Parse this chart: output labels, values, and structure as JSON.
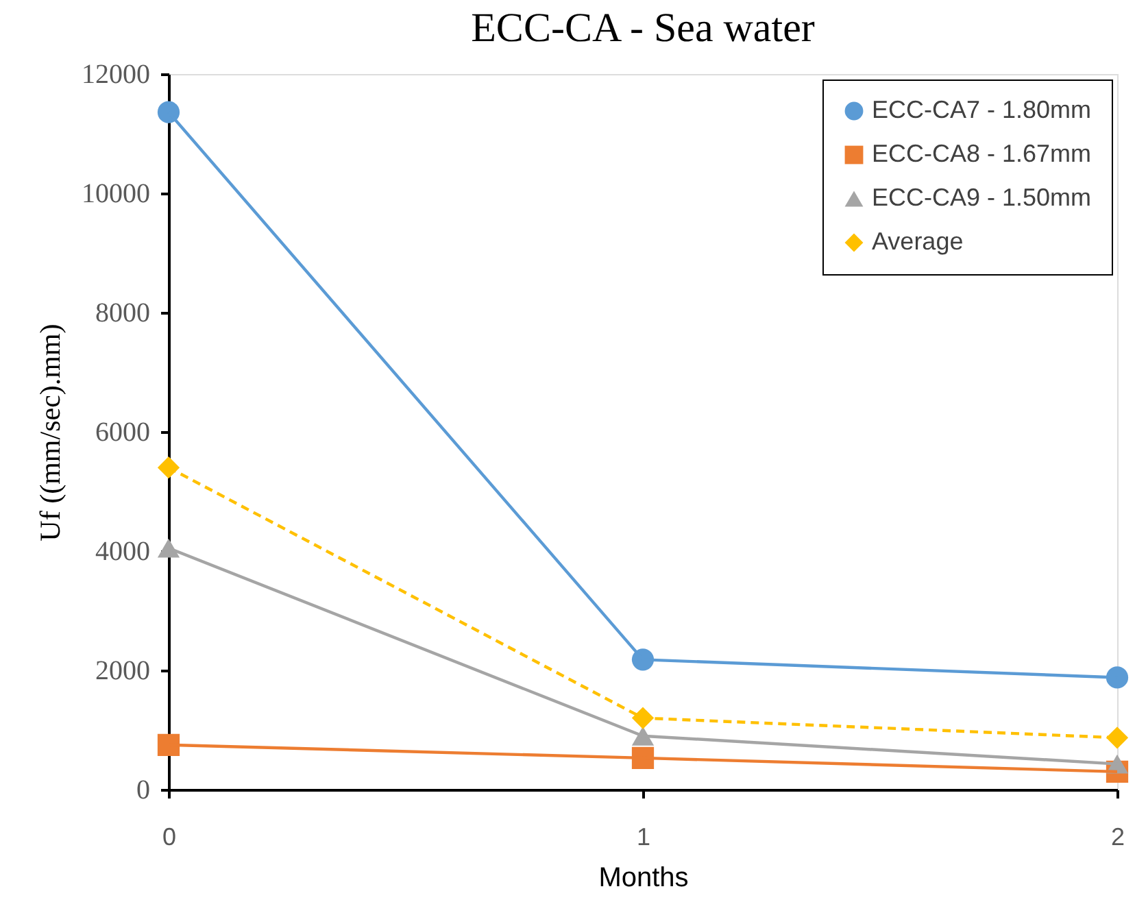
{
  "chart_data": {
    "type": "line",
    "title": "ECC-CA - Sea water",
    "xlabel": "Months",
    "ylabel": "Uf ((mm/sec).mm)",
    "x": [
      0,
      1,
      2
    ],
    "xlim": [
      0,
      2
    ],
    "xticks": [
      0,
      1,
      2
    ],
    "ylim": [
      0,
      12000
    ],
    "yticks": [
      0,
      2000,
      4000,
      6000,
      8000,
      10000,
      12000
    ],
    "grid": false,
    "legend": "top right",
    "series": [
      {
        "name": "ECC-CA7 - 1.80mm",
        "color": "#5b9bd5",
        "marker": "circle",
        "line_style": "solid",
        "values": [
          11360,
          2180,
          1880
        ]
      },
      {
        "name": "ECC-CA8 - 1.67mm",
        "color": "#ed7d31",
        "marker": "square",
        "line_style": "solid",
        "values": [
          750,
          530,
          300
        ]
      },
      {
        "name": "ECC-CA9 - 1.50mm",
        "color": "#a5a5a5",
        "marker": "triangle",
        "line_style": "solid",
        "values": [
          4050,
          900,
          430
        ]
      },
      {
        "name": "Average",
        "color": "#ffc000",
        "marker": "diamond",
        "line_style": "dashed",
        "values": [
          5400,
          1200,
          870
        ]
      }
    ]
  }
}
